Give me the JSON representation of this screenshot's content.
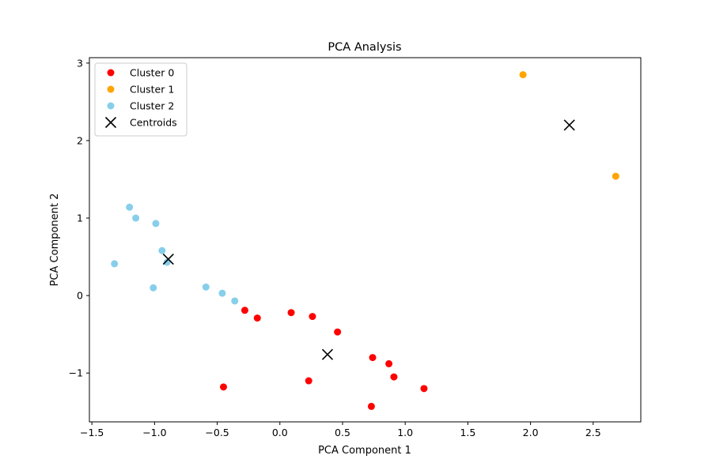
{
  "chart_data": {
    "type": "scatter",
    "title": "PCA Analysis",
    "xlabel": "PCA Component 1",
    "ylabel": "PCA Component 2",
    "xlim": [
      -1.52,
      2.88
    ],
    "ylim": [
      -1.63,
      3.07
    ],
    "xticks": [
      -1.5,
      -1.0,
      -0.5,
      0.0,
      0.5,
      1.0,
      1.5,
      2.0,
      2.5
    ],
    "xtick_labels": [
      "−1.5",
      "−1.0",
      "−0.5",
      "0.0",
      "0.5",
      "1.0",
      "1.5",
      "2.0",
      "2.5"
    ],
    "yticks": [
      -1,
      0,
      1,
      2,
      3
    ],
    "ytick_labels": [
      "−1",
      "0",
      "1",
      "2",
      "3"
    ],
    "grid": false,
    "legend_position": "top-left",
    "series": [
      {
        "name": "Cluster 0",
        "color": "#ff0000",
        "marker": "circle",
        "points": [
          [
            -0.28,
            -0.19
          ],
          [
            -0.18,
            -0.29
          ],
          [
            0.09,
            -0.22
          ],
          [
            0.26,
            -0.27
          ],
          [
            0.46,
            -0.47
          ],
          [
            0.74,
            -0.8
          ],
          [
            0.87,
            -0.88
          ],
          [
            0.91,
            -1.05
          ],
          [
            1.15,
            -1.2
          ],
          [
            0.23,
            -1.1
          ],
          [
            -0.45,
            -1.18
          ],
          [
            0.73,
            -1.43
          ]
        ]
      },
      {
        "name": "Cluster 1",
        "color": "#ffa500",
        "marker": "circle",
        "points": [
          [
            1.94,
            2.85
          ],
          [
            2.68,
            1.54
          ]
        ]
      },
      {
        "name": "Cluster 2",
        "color": "#87ceeb",
        "marker": "circle",
        "points": [
          [
            -1.2,
            1.14
          ],
          [
            -1.15,
            1.0
          ],
          [
            -0.99,
            0.93
          ],
          [
            -0.94,
            0.58
          ],
          [
            -0.9,
            0.43
          ],
          [
            -1.32,
            0.41
          ],
          [
            -1.01,
            0.1
          ],
          [
            -0.59,
            0.11
          ],
          [
            -0.46,
            0.03
          ],
          [
            -0.36,
            -0.07
          ]
        ]
      },
      {
        "name": "Centroids",
        "color": "#000000",
        "marker": "x",
        "points": [
          [
            -0.89,
            0.47
          ],
          [
            2.31,
            2.2
          ],
          [
            0.38,
            -0.76
          ]
        ]
      }
    ]
  }
}
